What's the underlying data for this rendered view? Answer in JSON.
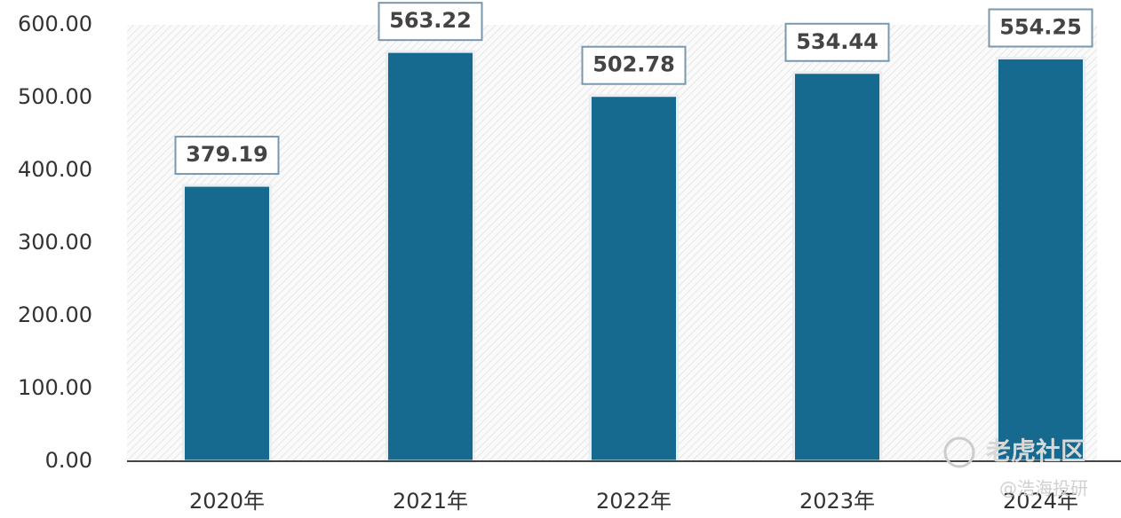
{
  "chart_data": {
    "type": "bar",
    "categories": [
      "2020年",
      "2021年",
      "2022年",
      "2023年",
      "2024年"
    ],
    "values": [
      379.19,
      563.22,
      502.78,
      534.44,
      554.25
    ],
    "color": "#176a8f",
    "ylim": [
      0,
      600
    ],
    "yticks": [
      {
        "value": 0,
        "label": "0.00"
      },
      {
        "value": 100,
        "label": "100.00"
      },
      {
        "value": 200,
        "label": "200.00"
      },
      {
        "value": 300,
        "label": "300.00"
      },
      {
        "value": 400,
        "label": "400.00"
      },
      {
        "value": 500,
        "label": "500.00"
      },
      {
        "value": 600,
        "label": "600.00"
      }
    ],
    "watermark": [
      "老虎社区",
      "@浩海投研"
    ]
  }
}
